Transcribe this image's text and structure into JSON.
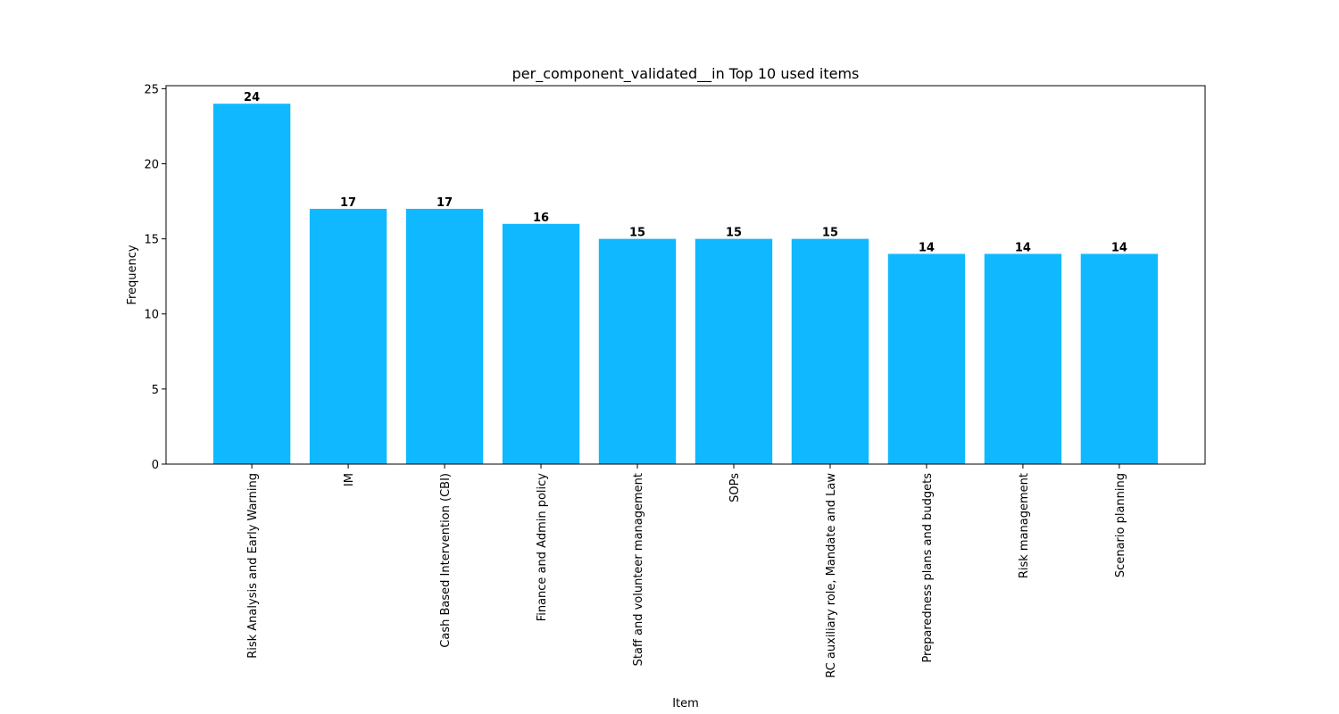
{
  "chart_data": {
    "type": "bar",
    "title": "per_component_validated__in Top 10 used items",
    "xlabel": "Item",
    "ylabel": "Frequency",
    "categories": [
      "Risk Analysis and Early Warning",
      "IM",
      "Cash Based Intervention (CBI)",
      "Finance and Admin policy",
      "Staff and volunteer management",
      "SOPs",
      "RC auxiliary role, Mandate and Law",
      "Preparedness plans and budgets",
      "Risk management",
      "Scenario planning"
    ],
    "values": [
      24,
      17,
      17,
      16,
      15,
      15,
      15,
      14,
      14,
      14
    ],
    "ylim": [
      0,
      25.2
    ],
    "yticks": [
      "0",
      "5",
      "10",
      "15",
      "20",
      "25"
    ],
    "bar_color": "#10b9ff",
    "grid": false,
    "legend": "none"
  }
}
